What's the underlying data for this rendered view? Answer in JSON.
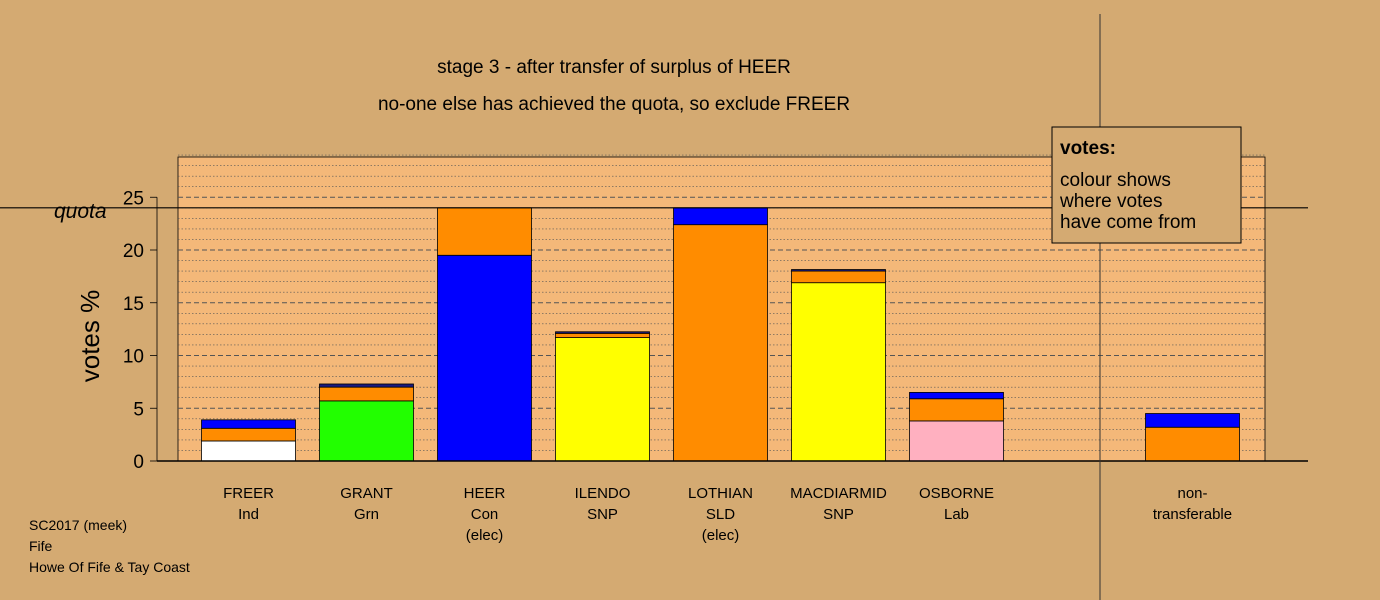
{
  "title_line1": "stage 3 - after transfer of surplus of HEER",
  "title_line2": "no-one else has achieved the quota, so exclude FREER",
  "footer": [
    "SC2017 (meek)",
    "Fife",
    "Howe Of Fife & Tay Coast"
  ],
  "legend": {
    "heading": "votes:",
    "lines": [
      "colour shows",
      "where votes",
      "have come from"
    ]
  },
  "quota_label": "quota",
  "colors": {
    "background": "#d4aa72",
    "plot_bg": "#f4b879",
    "blue": "#0000ff",
    "orange": "#ff8c00",
    "yellow": "#ffff00",
    "green": "#22ff00",
    "white": "#ffffff",
    "pink": "#ffb0c0",
    "navy": "#1a1a80"
  },
  "chart_data": {
    "type": "bar",
    "stacked": true,
    "ylabel": "votes %",
    "ylim": [
      0,
      29
    ],
    "yticks": [
      0,
      5,
      10,
      15,
      20,
      25
    ],
    "quota": 24,
    "grid": "dotted horizontal every 1%, dashed every 5%",
    "legend_position": "top-right",
    "categories": [
      {
        "name": "FREER",
        "party": "Ind",
        "note": ""
      },
      {
        "name": "GRANT",
        "party": "Grn",
        "note": ""
      },
      {
        "name": "HEER",
        "party": "Con",
        "note": "(elec)"
      },
      {
        "name": "ILENDO",
        "party": "SNP",
        "note": ""
      },
      {
        "name": "LOTHIAN",
        "party": "SLD",
        "note": "(elec)"
      },
      {
        "name": "MACDIARMID",
        "party": "SNP",
        "note": ""
      },
      {
        "name": "OSBORNE",
        "party": "Lab",
        "note": ""
      },
      {
        "name": "",
        "party": "",
        "note": ""
      },
      {
        "name": "non-",
        "party": "transferable",
        "note": ""
      }
    ],
    "bars": [
      [
        {
          "value": 1.9,
          "color": "white"
        },
        {
          "value": 1.2,
          "color": "orange"
        },
        {
          "value": 0.8,
          "color": "blue"
        }
      ],
      [
        {
          "value": 5.7,
          "color": "green"
        },
        {
          "value": 1.3,
          "color": "orange"
        },
        {
          "value": 0.3,
          "color": "navy"
        }
      ],
      [
        {
          "value": 19.5,
          "color": "blue"
        },
        {
          "value": 4.5,
          "color": "orange"
        }
      ],
      [
        {
          "value": 11.7,
          "color": "yellow"
        },
        {
          "value": 0.4,
          "color": "orange"
        },
        {
          "value": 0.15,
          "color": "navy"
        }
      ],
      [
        {
          "value": 22.4,
          "color": "orange"
        },
        {
          "value": 1.6,
          "color": "blue"
        }
      ],
      [
        {
          "value": 16.9,
          "color": "yellow"
        },
        {
          "value": 1.1,
          "color": "orange"
        },
        {
          "value": 0.15,
          "color": "navy"
        }
      ],
      [
        {
          "value": 3.8,
          "color": "pink"
        },
        {
          "value": 2.1,
          "color": "orange"
        },
        {
          "value": 0.6,
          "color": "blue"
        }
      ],
      [],
      [
        {
          "value": 3.2,
          "color": "orange"
        },
        {
          "value": 1.3,
          "color": "blue"
        }
      ]
    ]
  }
}
